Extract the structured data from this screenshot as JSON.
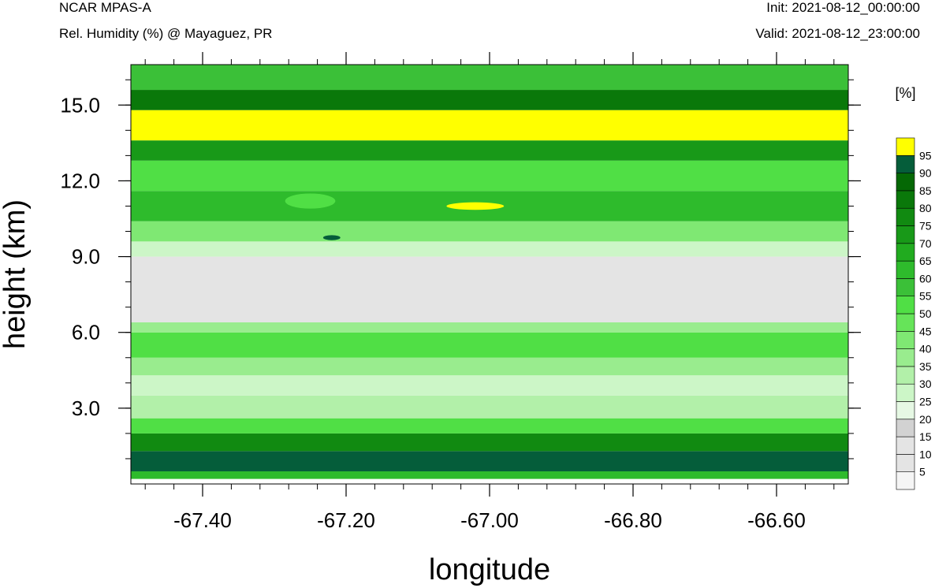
{
  "header": {
    "model": "NCAR MPAS-A",
    "subtitle": "Rel. Humidity (%) @ Mayaguez, PR",
    "init": "Init: 2021-08-12_00:00:00",
    "valid": "Valid: 2021-08-12_23:00:00"
  },
  "chart_data": {
    "type": "heatmap",
    "title": "Rel. Humidity (%) @ Mayaguez, PR",
    "xlabel": "longitude",
    "ylabel": "height (km)",
    "xlim": [
      -67.5,
      -66.5
    ],
    "ylim": [
      0.0,
      16.6
    ],
    "xticks": [
      -67.4,
      -67.2,
      -67.0,
      -66.8,
      -66.6
    ],
    "xtick_labels": [
      "-67.40",
      "-67.20",
      "-67.00",
      "-66.80",
      "-66.60"
    ],
    "yticks": [
      3.0,
      6.0,
      9.0,
      12.0,
      15.0
    ],
    "ytick_labels": [
      "3.0",
      "6.0",
      "9.0",
      "12.0",
      "15.0"
    ],
    "colorbar": {
      "unit": "[%]",
      "levels": [
        5,
        10,
        15,
        20,
        25,
        30,
        35,
        40,
        45,
        50,
        55,
        60,
        65,
        70,
        75,
        80,
        85,
        90,
        95
      ],
      "colors": [
        "#f5f5f5",
        "#e4e4e4",
        "#e4e4e4",
        "#d2d2d2",
        "#e6f8e4",
        "#ccf6c7",
        "#b2f0a9",
        "#99ec8e",
        "#7fe873",
        "#66e459",
        "#50df45",
        "#3bc038",
        "#2ebb2c",
        "#21ab1f",
        "#189918",
        "#118a11",
        "#0a780a",
        "#056805",
        "#055d3a",
        "#ffff00"
      ]
    },
    "bands": [
      {
        "y": [
          0.2,
          0.5
        ],
        "rh": 60
      },
      {
        "y": [
          0.5,
          1.3
        ],
        "rh": 90
      },
      {
        "y": [
          1.3,
          2.0
        ],
        "rh": 75
      },
      {
        "y": [
          2.0,
          2.6
        ],
        "rh": 50
      },
      {
        "y": [
          2.6,
          3.5
        ],
        "rh": 30
      },
      {
        "y": [
          3.5,
          4.3
        ],
        "rh": 25
      },
      {
        "y": [
          4.3,
          5.0
        ],
        "rh": 35
      },
      {
        "y": [
          5.0,
          6.0
        ],
        "rh": 50
      },
      {
        "y": [
          6.0,
          6.4
        ],
        "rh": 35
      },
      {
        "y": [
          6.4,
          9.0
        ],
        "rh": 10
      },
      {
        "y": [
          9.0,
          9.6
        ],
        "rh": 25
      },
      {
        "y": [
          9.6,
          10.4
        ],
        "rh": 40
      },
      {
        "y": [
          10.4,
          11.6
        ],
        "rh": 60
      },
      {
        "y": [
          11.6,
          12.8
        ],
        "rh": 50
      },
      {
        "y": [
          12.8,
          13.6
        ],
        "rh": 70
      },
      {
        "y": [
          13.6,
          14.8
        ],
        "rh": 96
      },
      {
        "y": [
          14.8,
          15.6
        ],
        "rh": 80
      },
      {
        "y": [
          15.6,
          16.6
        ],
        "rh": 55
      }
    ],
    "features": [
      {
        "name": "upper-yellow-core",
        "x": -67.14,
        "y": 14.2,
        "dx": 0.3,
        "dy": 0.55,
        "rh": 96
      },
      {
        "name": "small-yellow-core",
        "x": -67.02,
        "y": 11.0,
        "dx": 0.04,
        "dy": 0.15,
        "rh": 96
      },
      {
        "name": "dark-spot",
        "x": -67.22,
        "y": 9.75,
        "dx": 0.012,
        "dy": 0.1,
        "rh": 90
      },
      {
        "name": "light-pocket",
        "x": -67.25,
        "y": 11.2,
        "dx": 0.035,
        "dy": 0.3,
        "rh": 50
      }
    ]
  }
}
